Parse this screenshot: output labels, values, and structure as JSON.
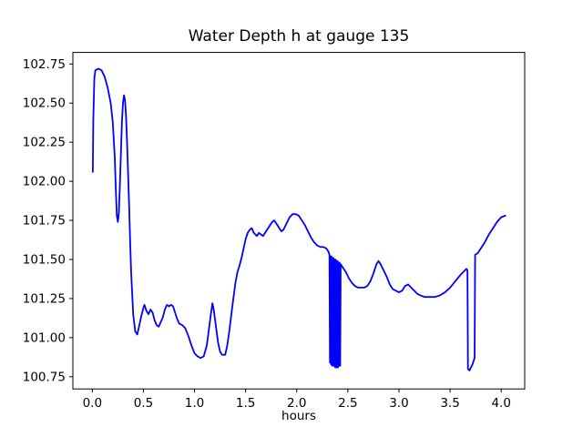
{
  "figure": {
    "background": "#ffffff"
  },
  "chart_data": {
    "type": "line",
    "title": "Water Depth h at gauge 135",
    "xlabel": "hours",
    "ylabel": "",
    "grid": false,
    "legend": null,
    "line_color": "#0000ff",
    "axis_color": "#000000",
    "text_color": "#000000",
    "xlim": [
      -0.19,
      4.23
    ],
    "ylim": [
      100.672,
      102.824
    ],
    "x_ticks": [
      0.0,
      0.5,
      1.0,
      1.5,
      2.0,
      2.5,
      3.0,
      3.5,
      4.0
    ],
    "x_tick_labels": [
      "0.0",
      "0.5",
      "1.0",
      "1.5",
      "2.0",
      "2.5",
      "3.0",
      "3.5",
      "4.0"
    ],
    "y_ticks": [
      100.75,
      101.0,
      101.25,
      101.5,
      101.75,
      102.0,
      102.25,
      102.5,
      102.75
    ],
    "y_tick_labels": [
      "100.75",
      "101.00",
      "101.25",
      "101.50",
      "101.75",
      "102.00",
      "102.25",
      "102.50",
      "102.75"
    ],
    "series": [
      {
        "name": "Water Depth h",
        "color": "#0000ff",
        "points": [
          [
            0.005,
            102.06
          ],
          [
            0.01,
            102.4
          ],
          [
            0.02,
            102.66
          ],
          [
            0.03,
            102.71
          ],
          [
            0.06,
            102.72
          ],
          [
            0.09,
            102.71
          ],
          [
            0.12,
            102.67
          ],
          [
            0.15,
            102.6
          ],
          [
            0.18,
            102.5
          ],
          [
            0.2,
            102.38
          ],
          [
            0.22,
            102.15
          ],
          [
            0.23,
            101.95
          ],
          [
            0.24,
            101.78
          ],
          [
            0.25,
            101.74
          ],
          [
            0.26,
            101.8
          ],
          [
            0.27,
            101.98
          ],
          [
            0.28,
            102.18
          ],
          [
            0.29,
            102.38
          ],
          [
            0.3,
            102.5
          ],
          [
            0.31,
            102.55
          ],
          [
            0.32,
            102.52
          ],
          [
            0.33,
            102.42
          ],
          [
            0.34,
            102.25
          ],
          [
            0.35,
            102.05
          ],
          [
            0.36,
            101.85
          ],
          [
            0.37,
            101.62
          ],
          [
            0.38,
            101.42
          ],
          [
            0.4,
            101.15
          ],
          [
            0.42,
            101.04
          ],
          [
            0.44,
            101.02
          ],
          [
            0.46,
            101.08
          ],
          [
            0.48,
            101.14
          ],
          [
            0.5,
            101.19
          ],
          [
            0.51,
            101.21
          ],
          [
            0.53,
            101.17
          ],
          [
            0.55,
            101.15
          ],
          [
            0.57,
            101.18
          ],
          [
            0.59,
            101.16
          ],
          [
            0.61,
            101.11
          ],
          [
            0.63,
            101.08
          ],
          [
            0.65,
            101.07
          ],
          [
            0.67,
            101.1
          ],
          [
            0.69,
            101.13
          ],
          [
            0.71,
            101.18
          ],
          [
            0.73,
            101.21
          ],
          [
            0.75,
            101.2
          ],
          [
            0.77,
            101.21
          ],
          [
            0.79,
            101.2
          ],
          [
            0.81,
            101.16
          ],
          [
            0.83,
            101.12
          ],
          [
            0.85,
            101.09
          ],
          [
            0.88,
            101.08
          ],
          [
            0.91,
            101.06
          ],
          [
            0.94,
            101.01
          ],
          [
            0.97,
            100.95
          ],
          [
            1.0,
            100.9
          ],
          [
            1.03,
            100.88
          ],
          [
            1.06,
            100.87
          ],
          [
            1.09,
            100.88
          ],
          [
            1.12,
            100.95
          ],
          [
            1.14,
            101.05
          ],
          [
            1.16,
            101.15
          ],
          [
            1.175,
            101.22
          ],
          [
            1.19,
            101.17
          ],
          [
            1.21,
            101.07
          ],
          [
            1.23,
            100.97
          ],
          [
            1.25,
            100.91
          ],
          [
            1.27,
            100.89
          ],
          [
            1.3,
            100.89
          ],
          [
            1.32,
            100.95
          ],
          [
            1.34,
            101.04
          ],
          [
            1.37,
            101.2
          ],
          [
            1.4,
            101.35
          ],
          [
            1.42,
            101.42
          ],
          [
            1.44,
            101.46
          ],
          [
            1.46,
            101.51
          ],
          [
            1.48,
            101.57
          ],
          [
            1.5,
            101.63
          ],
          [
            1.52,
            101.67
          ],
          [
            1.54,
            101.69
          ],
          [
            1.56,
            101.7
          ],
          [
            1.58,
            101.67
          ],
          [
            1.61,
            101.65
          ],
          [
            1.63,
            101.67
          ],
          [
            1.65,
            101.66
          ],
          [
            1.67,
            101.65
          ],
          [
            1.7,
            101.68
          ],
          [
            1.73,
            101.71
          ],
          [
            1.76,
            101.74
          ],
          [
            1.78,
            101.75
          ],
          [
            1.8,
            101.73
          ],
          [
            1.83,
            101.7
          ],
          [
            1.85,
            101.68
          ],
          [
            1.87,
            101.69
          ],
          [
            1.9,
            101.73
          ],
          [
            1.93,
            101.77
          ],
          [
            1.96,
            101.79
          ],
          [
            1.99,
            101.79
          ],
          [
            2.02,
            101.78
          ],
          [
            2.05,
            101.75
          ],
          [
            2.08,
            101.72
          ],
          [
            2.11,
            101.68
          ],
          [
            2.14,
            101.64
          ],
          [
            2.17,
            101.61
          ],
          [
            2.2,
            101.59
          ],
          [
            2.23,
            101.58
          ],
          [
            2.26,
            101.58
          ],
          [
            2.29,
            101.57
          ],
          [
            2.31,
            101.55
          ],
          [
            2.32,
            101.53
          ],
          [
            2.325,
            100.84
          ],
          [
            2.33,
            101.52
          ],
          [
            2.335,
            100.83
          ],
          [
            2.34,
            101.52
          ],
          [
            2.345,
            100.82
          ],
          [
            2.35,
            101.51
          ],
          [
            2.355,
            100.82
          ],
          [
            2.36,
            101.51
          ],
          [
            2.365,
            100.82
          ],
          [
            2.37,
            101.5
          ],
          [
            2.375,
            100.81
          ],
          [
            2.38,
            101.5
          ],
          [
            2.385,
            100.81
          ],
          [
            2.39,
            101.49
          ],
          [
            2.395,
            100.81
          ],
          [
            2.4,
            101.49
          ],
          [
            2.405,
            100.81
          ],
          [
            2.41,
            101.48
          ],
          [
            2.415,
            100.82
          ],
          [
            2.42,
            101.48
          ],
          [
            2.425,
            100.82
          ],
          [
            2.43,
            101.47
          ],
          [
            2.45,
            101.45
          ],
          [
            2.48,
            101.42
          ],
          [
            2.51,
            101.38
          ],
          [
            2.54,
            101.35
          ],
          [
            2.57,
            101.33
          ],
          [
            2.6,
            101.32
          ],
          [
            2.63,
            101.32
          ],
          [
            2.66,
            101.32
          ],
          [
            2.69,
            101.33
          ],
          [
            2.72,
            101.36
          ],
          [
            2.75,
            101.41
          ],
          [
            2.78,
            101.47
          ],
          [
            2.8,
            101.49
          ],
          [
            2.82,
            101.47
          ],
          [
            2.85,
            101.43
          ],
          [
            2.88,
            101.39
          ],
          [
            2.91,
            101.34
          ],
          [
            2.94,
            101.31
          ],
          [
            2.97,
            101.3
          ],
          [
            3.0,
            101.29
          ],
          [
            3.03,
            101.3
          ],
          [
            3.06,
            101.33
          ],
          [
            3.09,
            101.34
          ],
          [
            3.12,
            101.32
          ],
          [
            3.15,
            101.3
          ],
          [
            3.18,
            101.28
          ],
          [
            3.21,
            101.27
          ],
          [
            3.25,
            101.26
          ],
          [
            3.3,
            101.26
          ],
          [
            3.35,
            101.26
          ],
          [
            3.4,
            101.27
          ],
          [
            3.45,
            101.29
          ],
          [
            3.5,
            101.32
          ],
          [
            3.55,
            101.36
          ],
          [
            3.6,
            101.4
          ],
          [
            3.63,
            101.42
          ],
          [
            3.66,
            101.44
          ],
          [
            3.67,
            101.43
          ],
          [
            3.675,
            100.8
          ],
          [
            3.69,
            100.79
          ],
          [
            3.72,
            100.83
          ],
          [
            3.74,
            100.87
          ],
          [
            3.745,
            101.53
          ],
          [
            3.77,
            101.54
          ],
          [
            3.8,
            101.57
          ],
          [
            3.84,
            101.61
          ],
          [
            3.88,
            101.66
          ],
          [
            3.92,
            101.7
          ],
          [
            3.96,
            101.74
          ],
          [
            4.0,
            101.77
          ],
          [
            4.04,
            101.78
          ]
        ]
      }
    ]
  }
}
